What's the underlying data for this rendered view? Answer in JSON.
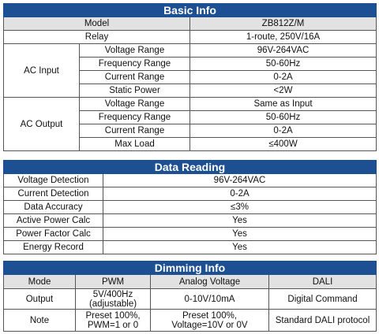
{
  "basic_info": {
    "title": "Basic Info",
    "header": [
      "Model",
      "ZB812Z/M"
    ],
    "relay": [
      "Relay",
      "1-route, 250V/16A"
    ],
    "groups": [
      {
        "label": "AC Input",
        "rows": [
          [
            "Voltage Range",
            "96V-264VAC"
          ],
          [
            "Frequency Range",
            "50-60Hz"
          ],
          [
            "Current Range",
            "0-2A"
          ],
          [
            "Static Power",
            "<2W"
          ]
        ]
      },
      {
        "label": "AC Output",
        "rows": [
          [
            "Voltage Range",
            "Same as Input"
          ],
          [
            "Frequency Range",
            "50-60Hz"
          ],
          [
            "Current Range",
            "0-2A"
          ],
          [
            "Max Load",
            "≤400W"
          ]
        ]
      }
    ]
  },
  "data_reading": {
    "title": "Data Reading",
    "rows": [
      [
        "Voltage Detection",
        "96V-264VAC"
      ],
      [
        "Current Detection",
        "0-2A"
      ],
      [
        "Data Accuracy",
        "≤3%"
      ],
      [
        "Active Power Calc",
        "Yes"
      ],
      [
        "Power Factor Calc",
        "Yes"
      ],
      [
        "Energy Record",
        "Yes"
      ]
    ]
  },
  "dimming_info": {
    "title": "Dimming Info",
    "header": [
      "Mode",
      "PWM",
      "Analog Voltage",
      "DALI"
    ],
    "rows": [
      [
        [
          "Output"
        ],
        [
          "5V/400Hz",
          "(adjustable)"
        ],
        [
          "0-10V/10mA"
        ],
        [
          "Digital Command"
        ]
      ],
      [
        [
          "Note"
        ],
        [
          "Preset 100%,",
          "PWM=1 or 0"
        ],
        [
          "Preset 100%,",
          "Voltage=10V or 0V"
        ],
        [
          "Standard DALI protocol"
        ]
      ]
    ]
  }
}
